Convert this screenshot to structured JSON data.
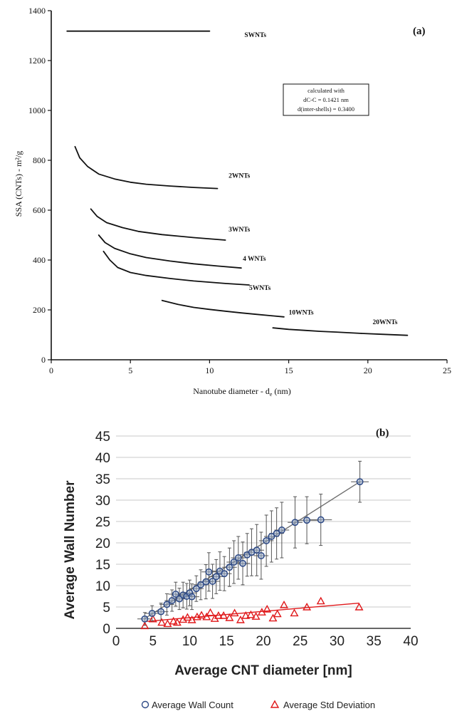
{
  "colors": {
    "axis": "#111111",
    "curve": "#111111",
    "grid_b": "#c8c8c8",
    "wall": "#2e4a86",
    "wall_fill": "#9db0cf",
    "wall_fit": "#6d6d6d",
    "std": "#e0191b",
    "errbar": "#555555"
  },
  "chart_data": [
    {
      "type": "line",
      "panel_label": "(a)",
      "xlabel": "Nanotube diameter - d",
      "xlabel_sub": "e",
      "xlabel_unit": " (nm)",
      "ylabel": "SSA (CNTs) - m²/g",
      "xlim": [
        0,
        25
      ],
      "ylim": [
        0,
        1400
      ],
      "xticks": [
        0,
        5,
        10,
        15,
        20,
        25
      ],
      "yticks": [
        0,
        200,
        400,
        600,
        800,
        1000,
        1200,
        1400
      ],
      "grid": false,
      "annotation": [
        "calculated with",
        "dC-C = 0.1421 nm",
        "d(inter-shells) = 0.3400"
      ],
      "series": [
        {
          "label": "SWNTs",
          "label_at": [
            12.2,
            1295
          ],
          "points": [
            [
              1,
              1318
            ],
            [
              10,
              1318
            ]
          ]
        },
        {
          "label": "2WNTs",
          "label_at": [
            11.2,
            730
          ],
          "points": [
            [
              1.5,
              855
            ],
            [
              1.8,
              810
            ],
            [
              2.3,
              775
            ],
            [
              3,
              745
            ],
            [
              4,
              725
            ],
            [
              5,
              712
            ],
            [
              6,
              704
            ],
            [
              7.5,
              697
            ],
            [
              9,
              691
            ],
            [
              10.5,
              687
            ]
          ]
        },
        {
          "label": "3WNTs",
          "label_at": [
            11.2,
            515
          ],
          "points": [
            [
              2.5,
              605
            ],
            [
              2.9,
              575
            ],
            [
              3.5,
              550
            ],
            [
              4.5,
              530
            ],
            [
              5.5,
              515
            ],
            [
              7,
              502
            ],
            [
              9,
              490
            ],
            [
              11,
              480
            ]
          ]
        },
        {
          "label": "4 WNTs",
          "label_at": [
            12.1,
            397
          ],
          "points": [
            [
              3,
              500
            ],
            [
              3.4,
              470
            ],
            [
              4,
              447
            ],
            [
              5,
              425
            ],
            [
              6,
              410
            ],
            [
              7.5,
              396
            ],
            [
              9,
              385
            ],
            [
              10.5,
              376
            ],
            [
              12,
              368
            ]
          ]
        },
        {
          "label": "5WNTs",
          "label_at": [
            12.5,
            280
          ],
          "points": [
            [
              3.3,
              435
            ],
            [
              3.7,
              400
            ],
            [
              4.2,
              370
            ],
            [
              5,
              350
            ],
            [
              6,
              338
            ],
            [
              7.5,
              326
            ],
            [
              9,
              316
            ],
            [
              11,
              306
            ],
            [
              12.5,
              300
            ]
          ]
        },
        {
          "label": "10WNTs",
          "label_at": [
            15.0,
            182
          ],
          "points": [
            [
              7,
              238
            ],
            [
              8,
              222
            ],
            [
              9,
              210
            ],
            [
              10,
              202
            ],
            [
              11,
              195
            ],
            [
              12,
              188
            ],
            [
              13,
              182
            ],
            [
              14,
              176
            ],
            [
              14.7,
              172
            ]
          ]
        },
        {
          "label": "20WNTs",
          "label_at": [
            20.3,
            143
          ],
          "points": [
            [
              14,
              128
            ],
            [
              15,
              122
            ],
            [
              16,
              118
            ],
            [
              17,
              114
            ],
            [
              18,
              111
            ],
            [
              19.5,
              106
            ],
            [
              21,
              102
            ],
            [
              22.5,
              98
            ]
          ]
        }
      ]
    },
    {
      "type": "scatter",
      "panel_label": "(b)",
      "xlabel": "Average CNT diameter [nm]",
      "ylabel": "Average  Wall Number",
      "xlim": [
        0,
        40
      ],
      "ylim": [
        0,
        45
      ],
      "xticks": [
        0,
        5,
        10,
        15,
        20,
        25,
        30,
        35,
        40
      ],
      "yticks": [
        0,
        5,
        10,
        15,
        20,
        25,
        30,
        35,
        40,
        45
      ],
      "grid": true,
      "legend_position": "bottom",
      "series": [
        {
          "name": "Average Wall Count",
          "marker": "circle",
          "points": [
            [
              3.9,
              2.2,
              1.5,
              1.0
            ],
            [
              4.9,
              3.5,
              1.8,
              1.0
            ],
            [
              6.1,
              3.9,
              2.0,
              1.0
            ],
            [
              6.9,
              5.6,
              2.5,
              1.0
            ],
            [
              7.6,
              6.5,
              2.5,
              1.0
            ],
            [
              8.1,
              8.0,
              2.8,
              1.0
            ],
            [
              8.6,
              6.9,
              2.5,
              1.0
            ],
            [
              9.1,
              7.8,
              3.0,
              1.0
            ],
            [
              9.6,
              7.5,
              3.0,
              1.0
            ],
            [
              10.0,
              8.3,
              3.0,
              1.0
            ],
            [
              10.3,
              7.4,
              3.0,
              1.0
            ],
            [
              10.9,
              9.3,
              3.0,
              1.0
            ],
            [
              11.5,
              10.2,
              3.5,
              1.0
            ],
            [
              12.2,
              10.9,
              4.0,
              1.0
            ],
            [
              12.6,
              13.2,
              4.5,
              1.0
            ],
            [
              13.1,
              11.0,
              4.0,
              1.0
            ],
            [
              13.6,
              12.1,
              4.0,
              1.0
            ],
            [
              14.1,
              13.4,
              4.5,
              1.0
            ],
            [
              14.7,
              12.8,
              4.0,
              1.0
            ],
            [
              15.4,
              14.3,
              4.5,
              1.0
            ],
            [
              16.0,
              15.5,
              5.0,
              1.0
            ],
            [
              16.6,
              16.5,
              5.0,
              1.0
            ],
            [
              17.2,
              15.2,
              5.0,
              1.0
            ],
            [
              17.8,
              17.2,
              5.0,
              1.0
            ],
            [
              18.4,
              17.8,
              5.5,
              1.0
            ],
            [
              19.1,
              18.3,
              6.0,
              1.0
            ],
            [
              19.7,
              17.0,
              5.5,
              1.0
            ],
            [
              20.4,
              20.5,
              6.0,
              1.0
            ],
            [
              21.1,
              21.5,
              6.0,
              1.0
            ],
            [
              21.8,
              22.2,
              6.0,
              1.0
            ],
            [
              22.5,
              23.0,
              6.5,
              1.0
            ],
            [
              24.3,
              24.8,
              6.0,
              1.0
            ],
            [
              25.9,
              25.3,
              5.5,
              1.5
            ],
            [
              27.8,
              25.4,
              6.0,
              1.5
            ],
            [
              33.1,
              34.3,
              4.8,
              1.2
            ]
          ]
        },
        {
          "name": "Average Std Deviation",
          "marker": "triangle",
          "points": [
            [
              3.9,
              0.5
            ],
            [
              5.0,
              2.1
            ],
            [
              6.2,
              1.3
            ],
            [
              7.0,
              1.0
            ],
            [
              7.8,
              1.6
            ],
            [
              8.3,
              1.3
            ],
            [
              9.1,
              2.0
            ],
            [
              9.7,
              2.5
            ],
            [
              10.3,
              1.9
            ],
            [
              11.0,
              2.6
            ],
            [
              11.6,
              3.0
            ],
            [
              12.3,
              2.6
            ],
            [
              12.8,
              3.6
            ],
            [
              13.4,
              2.2
            ],
            [
              13.9,
              2.9
            ],
            [
              14.6,
              2.9
            ],
            [
              15.4,
              2.4
            ],
            [
              16.1,
              3.5
            ],
            [
              16.9,
              1.9
            ],
            [
              17.6,
              2.9
            ],
            [
              18.3,
              3.1
            ],
            [
              19.0,
              2.7
            ],
            [
              19.8,
              3.7
            ],
            [
              20.5,
              4.4
            ],
            [
              21.3,
              2.3
            ],
            [
              21.9,
              3.3
            ],
            [
              22.8,
              5.4
            ],
            [
              24.2,
              3.5
            ],
            [
              25.9,
              4.9
            ],
            [
              27.8,
              6.3
            ],
            [
              33.0,
              4.9
            ]
          ]
        }
      ],
      "fits": [
        {
          "series": "Average Wall Count",
          "from": [
            3.9,
            2.3
          ],
          "to": [
            33.1,
            34.3
          ]
        },
        {
          "series": "Average Std Deviation",
          "from": [
            3.9,
            1.6
          ],
          "to": [
            33.0,
            5.9
          ]
        }
      ]
    }
  ]
}
